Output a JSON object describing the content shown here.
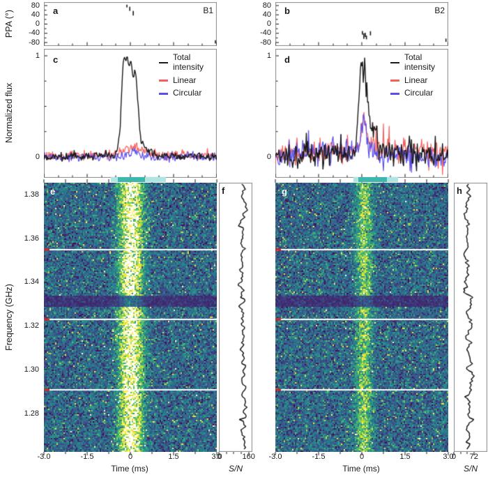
{
  "labels": {
    "panel_a": "a",
    "panel_b": "b",
    "panel_c": "c",
    "panel_d": "d",
    "panel_e": "e",
    "panel_f": "f",
    "panel_g": "g",
    "panel_h": "h",
    "burst_left": "B1",
    "burst_right": "B2",
    "ppa_axis": "PPA (°)",
    "flux_axis": "Normalized flux",
    "freq_axis": "Frequency (GHz)",
    "time_axis_left": "Time (ms)",
    "time_axis_right": "Time (ms)",
    "snr_axis_left": "S/N",
    "snr_axis_right": "S/N"
  },
  "legend": {
    "items": [
      {
        "name": "total-intensity",
        "label": "Total intensity",
        "color": "#1a1a1a"
      },
      {
        "name": "linear",
        "label": "Linear",
        "color": "#f4605e"
      },
      {
        "name": "circular",
        "label": "Circular",
        "color": "#5b50ec"
      }
    ]
  },
  "axes": {
    "time": {
      "tick_labels": [
        "-3.0",
        "-1.5",
        "0",
        "1.5",
        "3.0"
      ],
      "tick_values": [
        -3,
        -1.5,
        0,
        1.5,
        3
      ],
      "minor_step": 0.75,
      "range": [
        -3,
        3
      ]
    },
    "freq": {
      "tick_labels": [
        "1.38",
        "1.36",
        "1.34",
        "1.32",
        "1.30",
        "1.28"
      ],
      "tick_values": [
        1.38,
        1.36,
        1.34,
        1.32,
        1.3,
        1.28
      ],
      "range": [
        1.2625,
        1.3855
      ]
    },
    "ppa": {
      "tick_labels": [
        "80",
        "40",
        "0",
        "-40",
        "-80"
      ],
      "tick_values": [
        80,
        40,
        0,
        -40,
        -80
      ],
      "minor": [
        60,
        20,
        -20,
        -60
      ],
      "range": [
        -95,
        95
      ]
    },
    "flux": {
      "tick_labels": [
        "1",
        "0"
      ],
      "tick_values": [
        1,
        0
      ],
      "minor": [
        0.25,
        0.5,
        0.75
      ]
    },
    "snr_left": {
      "tick_labels": [
        "0",
        "160"
      ],
      "tick_values": [
        0,
        160
      ],
      "minor": [
        40,
        80,
        120
      ],
      "range": [
        0,
        180
      ]
    },
    "snr_right": {
      "tick_labels": [
        "0",
        "72"
      ],
      "tick_values": [
        0,
        72
      ],
      "minor": [
        24,
        48
      ],
      "range": [
        0,
        120
      ]
    }
  },
  "colors": {
    "total": "#1a1a1a",
    "linear": "#f4605e",
    "circular": "#5b50ec",
    "band_light": "#aee4e2",
    "band_dark": "#3db6ae",
    "freq_marker": "#d5281e",
    "frame": "#8a8a8a",
    "subband_line": "#ffffff"
  },
  "chart_data": [
    {
      "id": "a",
      "type": "scatter",
      "label": "a",
      "badge": "B1",
      "x_axis": "time",
      "y_axis": "ppa",
      "points": [
        {
          "t": -0.12,
          "ppa": 78,
          "err": 6
        },
        {
          "t": -0.02,
          "ppa": 66,
          "err": 9
        },
        {
          "t": 0.1,
          "ppa": 47,
          "err": 10
        },
        {
          "t": 2.95,
          "ppa": -77,
          "err": 7
        }
      ]
    },
    {
      "id": "b",
      "type": "scatter",
      "label": "b",
      "badge": "B2",
      "x_axis": "time",
      "y_axis": "ppa",
      "points": [
        {
          "t": 0.02,
          "ppa": -38,
          "err": 8
        },
        {
          "t": 0.07,
          "ppa": -52,
          "err": 12
        },
        {
          "t": 0.12,
          "ppa": -47,
          "err": 9
        },
        {
          "t": 0.16,
          "ppa": -58,
          "err": 8
        },
        {
          "t": 0.3,
          "ppa": -40,
          "err": 9
        },
        {
          "t": 2.92,
          "ppa": -70,
          "err": 7
        }
      ]
    },
    {
      "id": "c",
      "type": "line",
      "label": "c",
      "x_axis": "time",
      "y_axis": "flux",
      "seed": 7,
      "spike_prob": 0,
      "series": [
        {
          "name": "Linear",
          "color": "#f4605e",
          "noise": 0.027,
          "anchors": [
            [
              -3,
              0.01
            ],
            [
              -0.6,
              0.015
            ],
            [
              -0.3,
              0.05
            ],
            [
              -0.1,
              0.08
            ],
            [
              0.1,
              0.11
            ],
            [
              0.3,
              0.09
            ],
            [
              0.5,
              0.05
            ],
            [
              0.8,
              0.02
            ],
            [
              3,
              0.01
            ]
          ]
        },
        {
          "name": "Circular",
          "color": "#5b50ec",
          "noise": 0.022,
          "anchors": [
            [
              -3,
              -0.005
            ],
            [
              -0.3,
              0.0
            ],
            [
              0.0,
              0.03
            ],
            [
              0.2,
              0.06
            ],
            [
              0.4,
              0.02
            ],
            [
              0.7,
              -0.01
            ],
            [
              3,
              -0.005
            ]
          ]
        },
        {
          "name": "Total intensity",
          "color": "#1a1a1a",
          "noise": 0.02,
          "anchors": [
            [
              -3,
              0
            ],
            [
              -0.6,
              0.01
            ],
            [
              -0.45,
              0.04
            ],
            [
              -0.35,
              0.3
            ],
            [
              -0.28,
              0.8
            ],
            [
              -0.22,
              1.0
            ],
            [
              -0.15,
              0.95
            ],
            [
              -0.1,
              1.0
            ],
            [
              -0.05,
              0.88
            ],
            [
              0.0,
              0.95
            ],
            [
              0.05,
              0.9
            ],
            [
              0.1,
              0.75
            ],
            [
              0.14,
              0.87
            ],
            [
              0.2,
              0.78
            ],
            [
              0.26,
              0.55
            ],
            [
              0.32,
              0.3
            ],
            [
              0.38,
              0.12
            ],
            [
              0.5,
              0.08
            ],
            [
              0.65,
              0.06
            ],
            [
              0.85,
              0.02
            ],
            [
              3,
              0
            ]
          ]
        }
      ]
    },
    {
      "id": "d",
      "type": "line",
      "label": "d",
      "x_axis": "time",
      "y_axis": "flux",
      "seed": 9,
      "spike_prob": 0.03,
      "series": [
        {
          "name": "Linear",
          "color": "#f4605e",
          "noise": 0.065,
          "anchors": [
            [
              -3,
              0.04
            ],
            [
              -0.2,
              0.06
            ],
            [
              -0.05,
              0.15
            ],
            [
              0.05,
              0.42
            ],
            [
              0.12,
              0.35
            ],
            [
              0.2,
              0.18
            ],
            [
              0.4,
              0.08
            ],
            [
              3,
              0.04
            ]
          ]
        },
        {
          "name": "Circular",
          "color": "#5b50ec",
          "noise": 0.06,
          "anchors": [
            [
              -3,
              0.0
            ],
            [
              -0.1,
              0.08
            ],
            [
              0.0,
              0.25
            ],
            [
              0.07,
              0.43
            ],
            [
              0.15,
              0.3
            ],
            [
              0.25,
              0.1
            ],
            [
              0.5,
              0.02
            ],
            [
              3,
              0.0
            ]
          ]
        },
        {
          "name": "Total intensity",
          "color": "#1a1a1a",
          "noise": 0.065,
          "anchors": [
            [
              -3,
              0.02
            ],
            [
              -0.5,
              0.03
            ],
            [
              -0.3,
              0.05
            ],
            [
              -0.2,
              0.12
            ],
            [
              -0.12,
              0.45
            ],
            [
              -0.05,
              0.9
            ],
            [
              0.0,
              1.0
            ],
            [
              0.06,
              0.8
            ],
            [
              0.1,
              0.92
            ],
            [
              0.15,
              0.65
            ],
            [
              0.2,
              0.52
            ],
            [
              0.28,
              0.38
            ],
            [
              0.35,
              0.22
            ],
            [
              0.45,
              0.28
            ],
            [
              0.55,
              0.12
            ],
            [
              0.7,
              0.06
            ],
            [
              3,
              0.02
            ]
          ]
        }
      ]
    },
    {
      "id": "e",
      "type": "heatmap",
      "label": "e",
      "colormap": "viridis",
      "seed": 11,
      "x_axis": "time",
      "y_axis": "freq",
      "noise": {
        "mean": 0.33,
        "sd": 0.14
      },
      "burst": {
        "t0": 0.03,
        "sigma": 0.27,
        "amp": 1.05
      },
      "white_lines_ghz": [
        1.355,
        1.323,
        1.291
      ],
      "dark_band_ghz": [
        1.3285,
        1.334
      ],
      "band_bar": {
        "light": [
          -0.68,
          1.23
        ],
        "dark": [
          -0.44,
          0.51
        ]
      }
    },
    {
      "id": "f",
      "type": "line_vertical",
      "label": "f",
      "x_axis": "snr_left",
      "seed": 21,
      "mean": 128,
      "sd": 16
    },
    {
      "id": "g",
      "type": "heatmap",
      "label": "g",
      "colormap": "viridis",
      "seed": 12,
      "x_axis": "time",
      "y_axis": "freq",
      "noise": {
        "mean": 0.33,
        "sd": 0.14
      },
      "burst": {
        "t0": 0.08,
        "sigma": 0.2,
        "amp": 0.5
      },
      "white_lines_ghz": [
        1.355,
        1.323,
        1.291
      ],
      "dark_band_ghz": [
        1.3285,
        1.334
      ],
      "band_bar": {
        "light": [
          -0.3,
          1.25
        ],
        "dark": [
          -0.12,
          0.88
        ]
      }
    },
    {
      "id": "h",
      "type": "line_vertical",
      "label": "h",
      "x_axis": "snr_right",
      "seed": 22,
      "mean": 52,
      "sd": 11
    }
  ]
}
